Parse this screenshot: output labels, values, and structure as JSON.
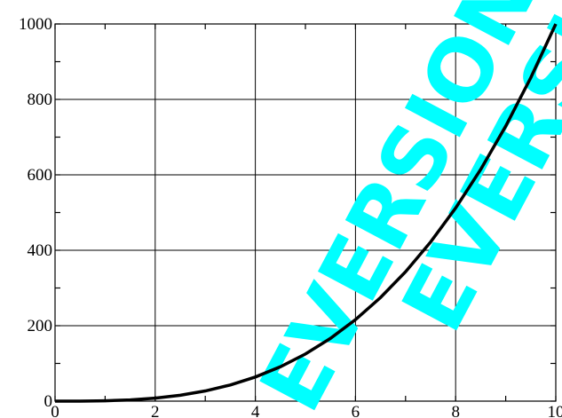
{
  "chart_data": {
    "type": "line",
    "title": "",
    "xlabel": "",
    "ylabel": "",
    "xlim": [
      0,
      10
    ],
    "ylim": [
      0,
      1000
    ],
    "x_ticks": [
      "0",
      "2",
      "4",
      "6",
      "8",
      "10"
    ],
    "y_ticks": [
      "0",
      "200",
      "400",
      "600",
      "800",
      "1000"
    ],
    "grid": true,
    "series": [
      {
        "x": [
          0,
          0.5,
          1,
          1.5,
          2,
          2.5,
          3,
          3.5,
          4,
          4.5,
          5,
          5.5,
          6,
          6.5,
          7,
          7.5,
          8,
          8.5,
          9,
          9.5,
          10
        ],
        "y": [
          0,
          0.125,
          1,
          3.375,
          8,
          15.625,
          27,
          42.875,
          64,
          91.125,
          125,
          166.375,
          216,
          274.625,
          343,
          421.875,
          512,
          614.125,
          729,
          857.375,
          1000
        ]
      }
    ]
  },
  "watermark": {
    "text": "EVERSION",
    "color": "#00FFFF"
  }
}
